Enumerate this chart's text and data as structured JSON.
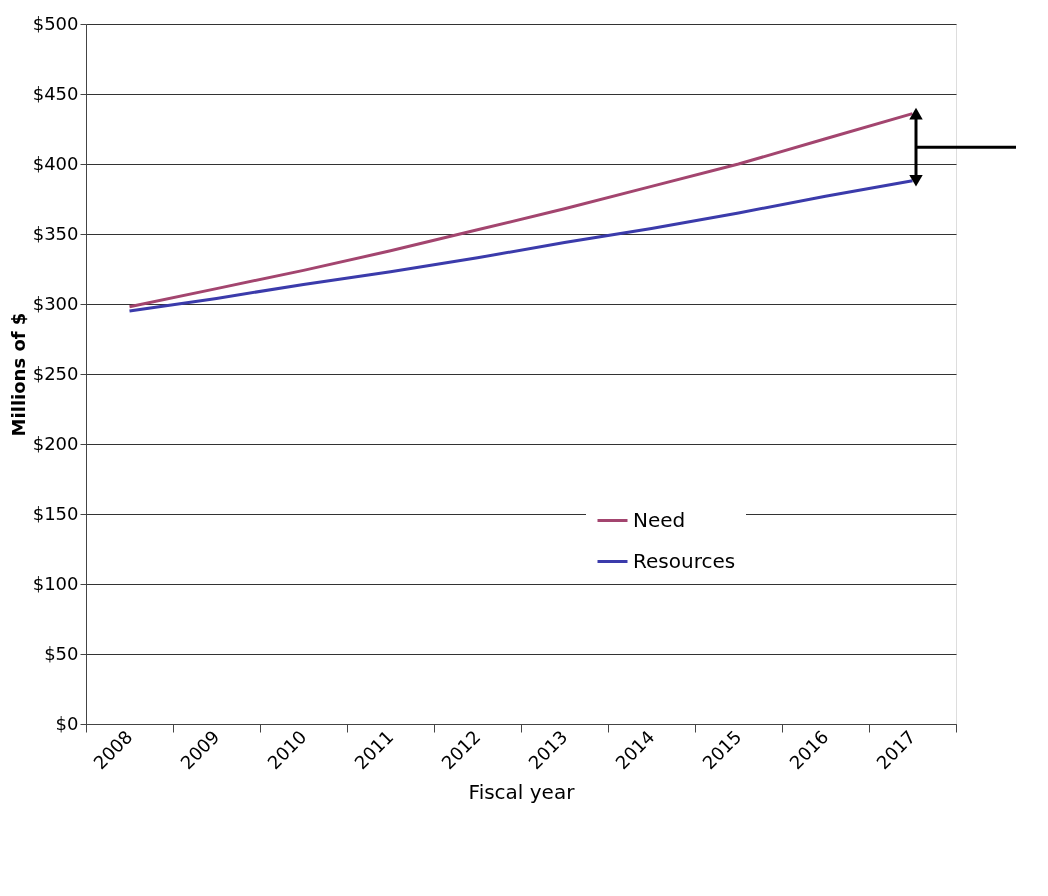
{
  "chart_data": {
    "type": "line",
    "xlabel": "Fiscal year",
    "ylabel": "Millions of $",
    "categories": [
      "2008",
      "2009",
      "2010",
      "2011",
      "2012",
      "2013",
      "2014",
      "2015",
      "2016",
      "2017"
    ],
    "series": [
      {
        "name": "Need",
        "color": "#a3456f",
        "values": [
          298,
          311,
          324,
          338,
          353,
          368,
          384,
          400,
          418,
          436
        ]
      },
      {
        "name": "Resources",
        "color": "#3b3bab",
        "values": [
          295,
          304,
          314,
          323,
          333,
          344,
          354,
          365,
          377,
          388
        ]
      }
    ],
    "ylim": [
      0,
      500
    ],
    "yticks": [
      {
        "value": 0,
        "label": "$0"
      },
      {
        "value": 50,
        "label": "$50"
      },
      {
        "value": 100,
        "label": "$100"
      },
      {
        "value": 150,
        "label": "$150"
      },
      {
        "value": 200,
        "label": "$200"
      },
      {
        "value": 250,
        "label": "$250"
      },
      {
        "value": 300,
        "label": "$300"
      },
      {
        "value": 350,
        "label": "$350"
      },
      {
        "value": 400,
        "label": "$400"
      },
      {
        "value": 450,
        "label": "$450"
      },
      {
        "value": 500,
        "label": "$500"
      }
    ],
    "grid": "y",
    "legend": "bottom right",
    "marker": "none",
    "line_style": "solid"
  }
}
